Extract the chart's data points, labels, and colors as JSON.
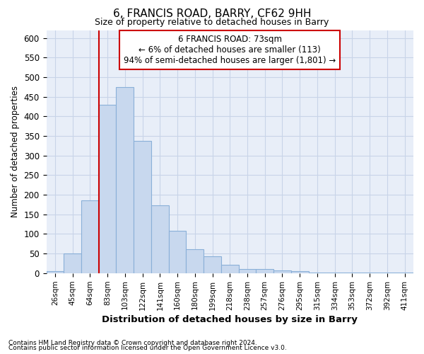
{
  "title": "6, FRANCIS ROAD, BARRY, CF62 9HH",
  "subtitle": "Size of property relative to detached houses in Barry",
  "xlabel": "Distribution of detached houses by size in Barry",
  "ylabel": "Number of detached properties",
  "categories": [
    "26sqm",
    "45sqm",
    "64sqm",
    "83sqm",
    "103sqm",
    "122sqm",
    "141sqm",
    "160sqm",
    "180sqm",
    "199sqm",
    "218sqm",
    "238sqm",
    "257sqm",
    "276sqm",
    "295sqm",
    "315sqm",
    "334sqm",
    "353sqm",
    "372sqm",
    "392sqm",
    "411sqm"
  ],
  "values": [
    5,
    50,
    185,
    430,
    475,
    337,
    172,
    107,
    60,
    43,
    22,
    10,
    10,
    7,
    5,
    2,
    2,
    1,
    1,
    1,
    1
  ],
  "bar_color": "#c8d8ee",
  "bar_edge_color": "#8ab0d8",
  "vline_color": "#cc0000",
  "vline_x_idx": 2.5,
  "ylim": [
    0,
    620
  ],
  "yticks": [
    0,
    50,
    100,
    150,
    200,
    250,
    300,
    350,
    400,
    450,
    500,
    550,
    600
  ],
  "grid_color": "#c8d4e8",
  "annotation_line1": "6 FRANCIS ROAD: 73sqm",
  "annotation_line2": "← 6% of detached houses are smaller (113)",
  "annotation_line3": "94% of semi-detached houses are larger (1,801) →",
  "annotation_box_color": "#ffffff",
  "annotation_box_edge": "#cc0000",
  "footnote1": "Contains HM Land Registry data © Crown copyright and database right 2024.",
  "footnote2": "Contains public sector information licensed under the Open Government Licence v3.0.",
  "bg_color": "#ffffff",
  "plot_bg_color": "#e8eef8"
}
